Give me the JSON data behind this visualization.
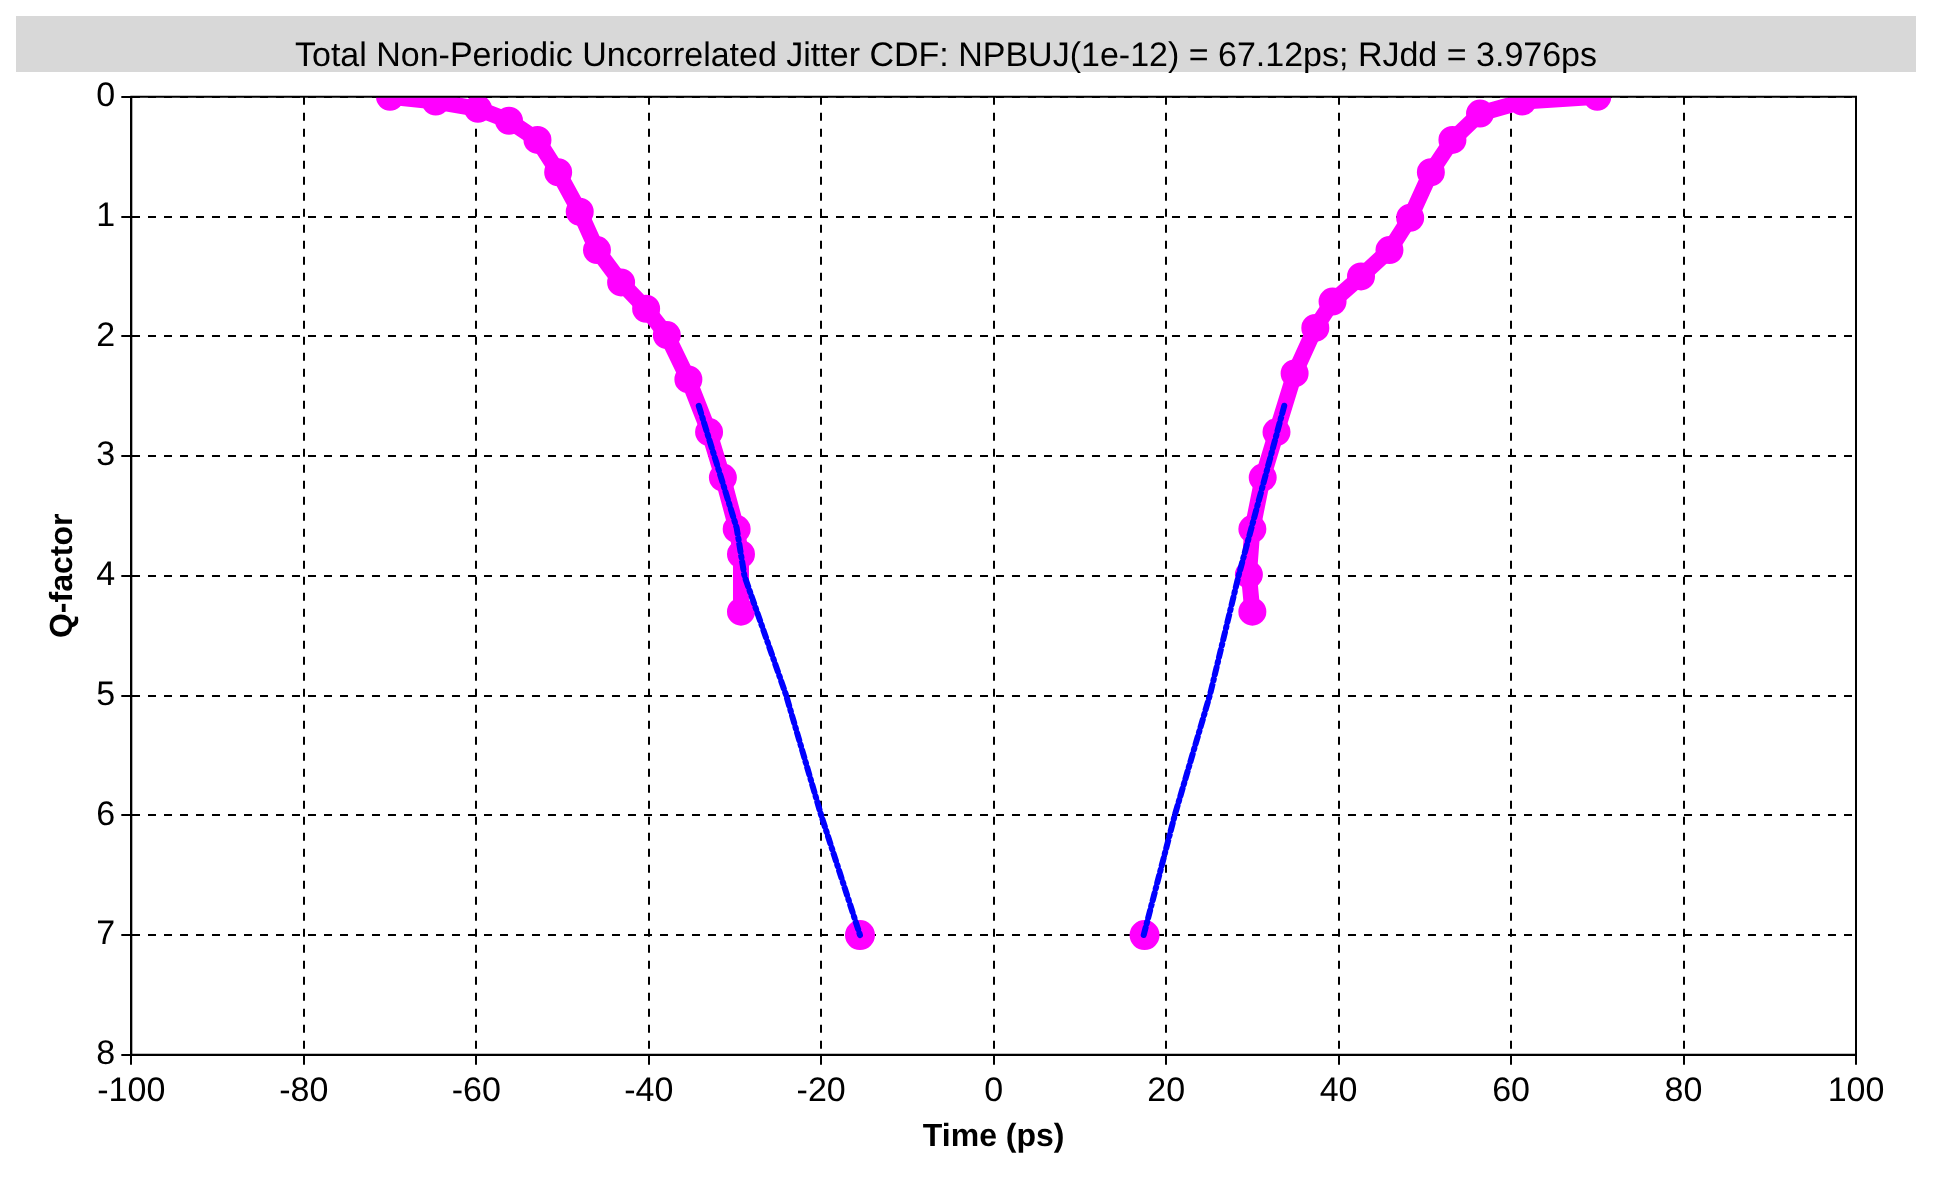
{
  "chart_data": {
    "type": "line",
    "title": "Total Non-Periodic Uncorrelated Jitter CDF: NPBUJ(1e-12) = 67.12ps; RJdd = 3.976ps",
    "xlabel": "Time (ps)",
    "ylabel": "Q-factor",
    "xlim": [
      -100,
      100
    ],
    "xticks": [
      -100,
      -80,
      -60,
      -40,
      -20,
      0,
      20,
      40,
      60,
      80,
      100
    ],
    "ylim": [
      8,
      0
    ],
    "yticks": [
      0,
      1,
      2,
      3,
      4,
      5,
      6,
      7,
      8
    ],
    "grid": true,
    "legend": false,
    "series": [
      {
        "type": "line",
        "marker": "circle",
        "line_style": "solid",
        "color": "#ff00ff",
        "x": [
          -70,
          -64.7,
          -59.8,
          -56.2,
          -52.9,
          -50.5,
          -48,
          -46,
          -43.2,
          -40.3,
          -37.9,
          -35.4,
          -33,
          -31.4,
          -29.8,
          -29.3,
          -29.3
        ],
        "values": [
          0,
          0.04,
          0.1,
          0.2,
          0.36,
          0.63,
          0.96,
          1.28,
          1.55,
          1.77,
          1.99,
          2.36,
          2.8,
          3.18,
          3.61,
          3.82,
          4.3
        ]
      },
      {
        "type": "line",
        "marker": "circle",
        "line_style": "solid",
        "color": "#ff00ff",
        "x": [
          70,
          61.3,
          56.4,
          53.2,
          50.7,
          48.3,
          45.9,
          42.6,
          39.3,
          37.3,
          34.9,
          32.8,
          31.2,
          30,
          29.6,
          30
        ],
        "values": [
          0,
          0.04,
          0.14,
          0.36,
          0.63,
          1.01,
          1.28,
          1.5,
          1.71,
          1.93,
          2.31,
          2.8,
          3.18,
          3.61,
          3.99,
          4.3
        ]
      },
      {
        "type": "line",
        "marker": "none",
        "line_style": "dashed",
        "color": "#0000ff",
        "x": [
          -34.2,
          -29.8,
          -28.9,
          -24.1,
          -20,
          -15.5
        ],
        "values": [
          2.58,
          3.6,
          4.0,
          4.99,
          6.0,
          7.0
        ]
      },
      {
        "type": "line",
        "marker": "none",
        "line_style": "dashed",
        "color": "#0000ff",
        "x": [
          33.7,
          28.4,
          25.1,
          21,
          17.4
        ],
        "values": [
          2.58,
          4.0,
          4.99,
          6.0,
          7.0
        ]
      },
      {
        "type": "scatter",
        "marker": "circle",
        "color": "#ff00ff",
        "x": [
          -15.5,
          17.5
        ],
        "values": [
          7,
          7
        ]
      }
    ]
  }
}
